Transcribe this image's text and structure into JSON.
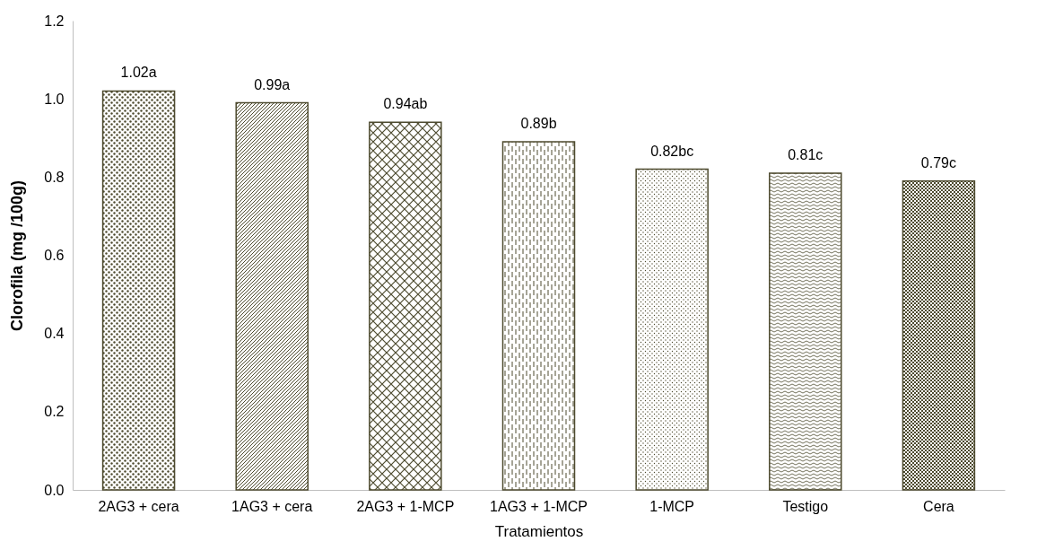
{
  "chart_data": {
    "type": "bar",
    "xlabel": "Tratamientos",
    "ylabel": "Clorofila (mg /100g)",
    "categories": [
      "2AG3 + cera",
      "1AG3 + cera",
      "2AG3 + 1-MCP",
      "1AG3 + 1-MCP",
      "1-MCP",
      "Testigo",
      "Cera"
    ],
    "values": [
      1.02,
      0.99,
      0.94,
      0.89,
      0.82,
      0.81,
      0.79
    ],
    "value_labels": [
      "1.02a",
      "0.99a",
      "0.94ab",
      "0.89b",
      "0.82bc",
      "0.81c",
      "0.79c"
    ],
    "colors": [
      "#4d4a2e",
      "#4d4a2e",
      "#4d4a2e",
      "#4d4a2e",
      "#4d4a2e",
      "#4d4a2e",
      "#4d4a2e"
    ],
    "ylim": [
      0,
      1.2
    ],
    "yticks": [
      {
        "value": 0,
        "label": "0.0"
      },
      0.2,
      0.4,
      0.6,
      0.8,
      {
        "value": 1,
        "label": "1.0"
      },
      1.2
    ],
    "grid": false
  }
}
